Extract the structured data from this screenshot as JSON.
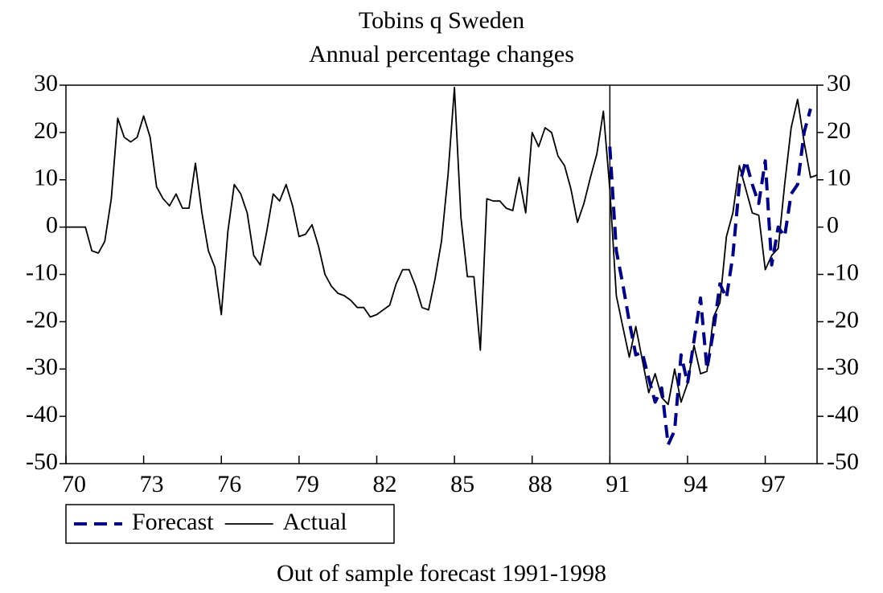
{
  "chart_data": {
    "type": "line",
    "title": "Tobins q Sweden",
    "subtitle": "Annual percentage changes",
    "caption": "Out of sample forecast 1991-1998",
    "x": [
      1970,
      1970.25,
      1970.5,
      1970.75,
      1971,
      1971.25,
      1971.5,
      1971.75,
      1972,
      1972.25,
      1972.5,
      1972.75,
      1973,
      1973.25,
      1973.5,
      1973.75,
      1974,
      1974.25,
      1974.5,
      1974.75,
      1975,
      1975.25,
      1975.5,
      1975.75,
      1976,
      1976.25,
      1976.5,
      1976.75,
      1977,
      1977.25,
      1977.5,
      1977.75,
      1978,
      1978.25,
      1978.5,
      1978.75,
      1979,
      1979.25,
      1979.5,
      1979.75,
      1980,
      1980.25,
      1980.5,
      1980.75,
      1981,
      1981.25,
      1981.5,
      1981.75,
      1982,
      1982.25,
      1982.5,
      1982.75,
      1983,
      1983.25,
      1983.5,
      1983.75,
      1984,
      1984.25,
      1984.5,
      1984.75,
      1985,
      1985.25,
      1985.5,
      1985.75,
      1986,
      1986.25,
      1986.5,
      1986.75,
      1987,
      1987.25,
      1987.5,
      1987.75,
      1988,
      1988.25,
      1988.5,
      1988.75,
      1989,
      1989.25,
      1989.5,
      1989.75,
      1990,
      1990.25,
      1990.5,
      1990.75,
      1991,
      1991.25,
      1991.5,
      1991.75,
      1992,
      1992.25,
      1992.5,
      1992.75,
      1993,
      1993.25,
      1993.5,
      1993.75,
      1994,
      1994.25,
      1994.5,
      1994.75,
      1995,
      1995.25,
      1995.5,
      1995.75,
      1996,
      1996.25,
      1996.5,
      1996.75,
      1997,
      1997.25,
      1997.5,
      1997.75,
      1998,
      1998.25,
      1998.5,
      1998.75,
      1999
    ],
    "series": [
      {
        "name": "Forecast",
        "color": "#000080",
        "dashed": true,
        "values": [
          null,
          null,
          null,
          null,
          null,
          null,
          null,
          null,
          null,
          null,
          null,
          null,
          null,
          null,
          null,
          null,
          null,
          null,
          null,
          null,
          null,
          null,
          null,
          null,
          null,
          null,
          null,
          null,
          null,
          null,
          null,
          null,
          null,
          null,
          null,
          null,
          null,
          null,
          null,
          null,
          null,
          null,
          null,
          null,
          null,
          null,
          null,
          null,
          null,
          null,
          null,
          null,
          null,
          null,
          null,
          null,
          null,
          null,
          null,
          null,
          null,
          null,
          null,
          null,
          null,
          null,
          null,
          null,
          null,
          null,
          null,
          null,
          null,
          null,
          null,
          null,
          null,
          null,
          null,
          null,
          null,
          null,
          null,
          null,
          17,
          -5,
          -12,
          -20,
          -27,
          -26.5,
          -32,
          -37,
          -34,
          -46,
          -43,
          -27,
          -33,
          -24,
          -15,
          -30,
          -22,
          -12,
          -15,
          -6,
          9,
          14,
          9,
          5,
          14,
          -8,
          0,
          -2,
          7,
          9,
          20,
          25,
          null
        ]
      },
      {
        "name": "Actual",
        "color": "#000000",
        "dashed": false,
        "values": [
          0,
          0,
          0,
          0,
          -5,
          -5.5,
          -3,
          6,
          23,
          19,
          18,
          19,
          23.5,
          19,
          8.5,
          6,
          4.5,
          7,
          4,
          4,
          13.5,
          3,
          -5,
          -8.5,
          -18.5,
          -1,
          9,
          7,
          3,
          -6,
          -8,
          -1,
          7,
          5.5,
          9,
          4.5,
          -2,
          -1.5,
          0.5,
          -4,
          -10,
          -12.5,
          -14,
          -14.5,
          -15.5,
          -17,
          -17,
          -19,
          -18.5,
          -17.5,
          -16.5,
          -12,
          -9,
          -9,
          -12.5,
          -17,
          -17.5,
          -11,
          -3,
          11,
          29.5,
          2,
          -10.5,
          -10.5,
          -26,
          6,
          5.5,
          5.5,
          4,
          3.5,
          10.5,
          3,
          20,
          17,
          21,
          20,
          15,
          13,
          8,
          1,
          5,
          10.5,
          15.5,
          24.5,
          8,
          -14.5,
          -21,
          -27.5,
          -21,
          -28,
          -35,
          -31,
          -36,
          -37.5,
          -30,
          -37,
          -33,
          -25,
          -31,
          -30.5,
          -19,
          -16,
          -2,
          3,
          13,
          8,
          3,
          2.5,
          -9,
          -6,
          -4.5,
          9,
          21,
          27,
          18,
          10.5,
          11
        ]
      }
    ],
    "vline": 1991,
    "xlim": [
      1970,
      1999
    ],
    "xticks": [
      {
        "value": 1970,
        "label": "70"
      },
      {
        "value": 1973,
        "label": "73"
      },
      {
        "value": 1976,
        "label": "76"
      },
      {
        "value": 1979,
        "label": "79"
      },
      {
        "value": 1982,
        "label": "82"
      },
      {
        "value": 1985,
        "label": "85"
      },
      {
        "value": 1988,
        "label": "88"
      },
      {
        "value": 1991,
        "label": "91"
      },
      {
        "value": 1994,
        "label": "94"
      },
      {
        "value": 1997,
        "label": "97"
      }
    ],
    "ylim": [
      -50,
      30
    ],
    "yticks": [
      -50,
      -40,
      -30,
      -20,
      -10,
      0,
      10,
      20,
      30
    ],
    "right_axis": true,
    "legend": "bottom-left"
  }
}
